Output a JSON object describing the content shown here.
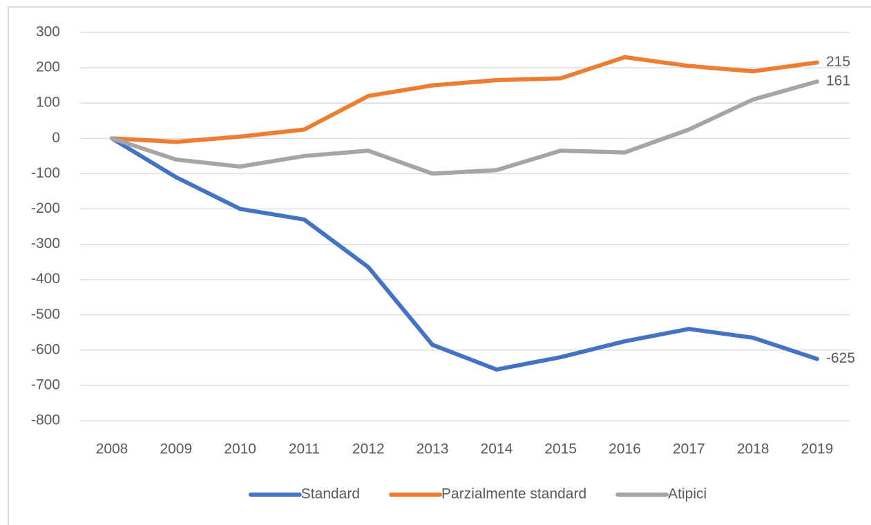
{
  "chart_data": {
    "type": "line",
    "categories": [
      "2008",
      "2009",
      "2010",
      "2011",
      "2012",
      "2013",
      "2014",
      "2015",
      "2016",
      "2017",
      "2018",
      "2019"
    ],
    "series": [
      {
        "name": "Standard",
        "color": "#4472c4",
        "values": [
          0,
          -110,
          -200,
          -230,
          -365,
          -585,
          -655,
          -620,
          -575,
          -540,
          -565,
          -625
        ]
      },
      {
        "name": "Parzialmente standard",
        "color": "#ed7d31",
        "values": [
          0,
          -10,
          5,
          25,
          120,
          150,
          165,
          170,
          230,
          205,
          190,
          215
        ]
      },
      {
        "name": "Atipici",
        "color": "#a5a5a5",
        "values": [
          0,
          -60,
          -80,
          -50,
          -35,
          -100,
          -90,
          -35,
          -40,
          25,
          110,
          161
        ]
      }
    ],
    "ylim": [
      -800,
      300
    ],
    "yticks": [
      -800,
      -700,
      -600,
      -500,
      -400,
      -300,
      -200,
      -100,
      0,
      100,
      200,
      300
    ],
    "grid": true,
    "end_labels": true,
    "legend": "bottom"
  }
}
